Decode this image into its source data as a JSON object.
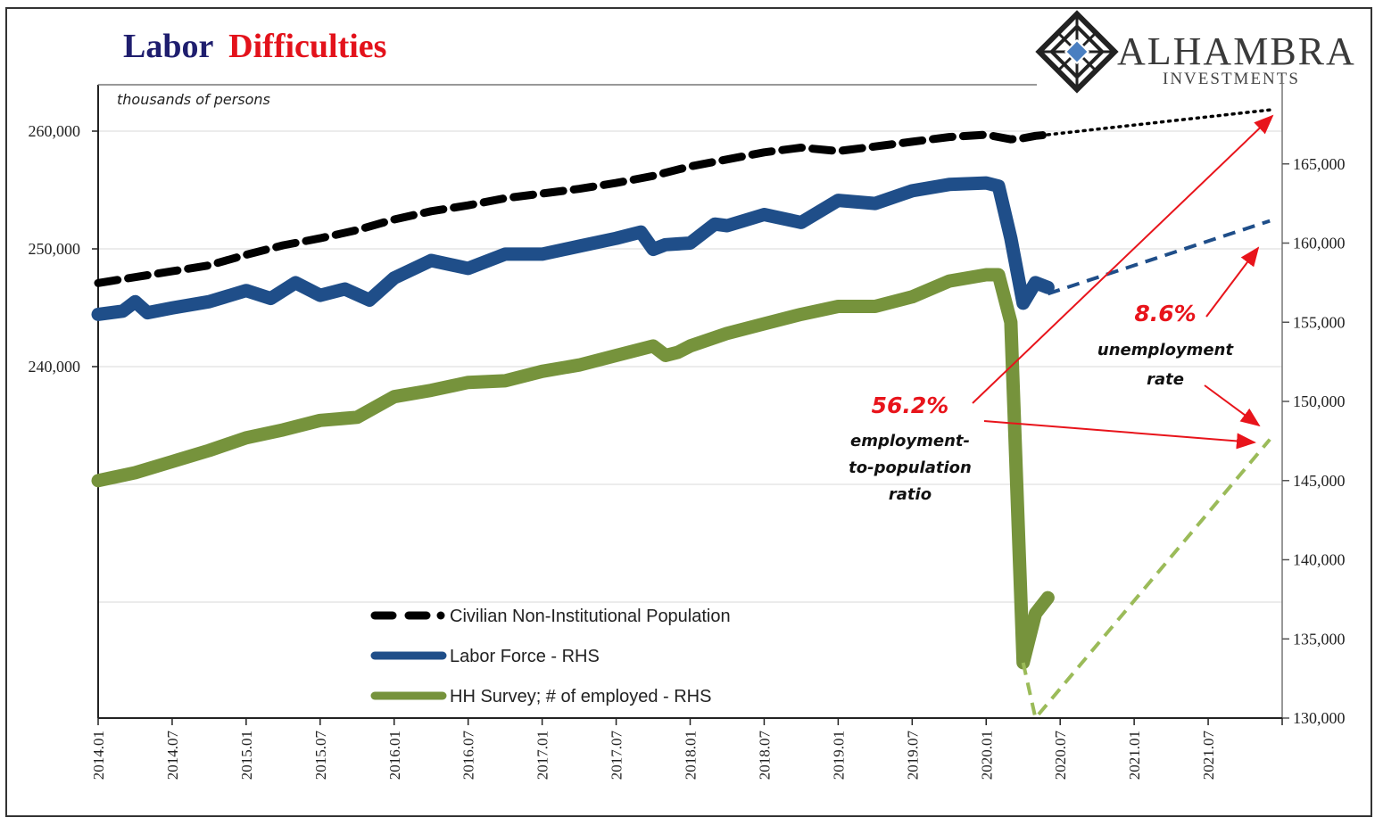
{
  "header": {
    "title_part1": "Labor",
    "title_part2": "Difficulties",
    "title_colors": {
      "part1": "#1f1e6e",
      "part2": "#e3121b"
    },
    "unit_label": "thousands of persons"
  },
  "logo": {
    "name": "ALHAMBRA",
    "sub": "INVESTMENTS",
    "icon": "diamond-lattice-icon",
    "accent": "#4a7fc1"
  },
  "chart_data": {
    "type": "line",
    "title": "Labor Difficulties",
    "ylabel_left": "thousands of persons",
    "x_start": "2014.01",
    "x_tick_labels": [
      "2014.01",
      "2014.07",
      "2015.01",
      "2015.07",
      "2016.01",
      "2016.07",
      "2017.01",
      "2017.07",
      "2018.01",
      "2018.07",
      "2019.01",
      "2019.07",
      "2020.01",
      "2020.07",
      "2021.01",
      "2021.07"
    ],
    "x_range_months": [
      0,
      96
    ],
    "left_axis": {
      "ticks": [
        240000,
        250000,
        260000
      ],
      "tick_labels": [
        "240,000",
        "250,000",
        "260,000"
      ],
      "gridlines": [
        220000,
        230000,
        240000,
        250000,
        260000
      ],
      "range": [
        210150,
        263940
      ]
    },
    "right_axis": {
      "ticks": [
        130000,
        135000,
        140000,
        145000,
        150000,
        155000,
        160000,
        165000
      ],
      "tick_labels": [
        "130,000",
        "135,000",
        "140,000",
        "145,000",
        "150,000",
        "155,000",
        "160,000",
        "165,000"
      ],
      "range": [
        130000,
        170000
      ]
    },
    "grid": true,
    "legend_position": "bottom-center",
    "series": [
      {
        "name": "Civilian Non-Institutional Population",
        "axis": "left",
        "color": "#000000",
        "style": "dashed",
        "months": [
          0,
          3,
          6,
          9,
          12,
          15,
          18,
          21,
          24,
          27,
          30,
          33,
          36,
          39,
          42,
          45,
          48,
          51,
          54,
          57,
          60,
          63,
          66,
          69,
          72,
          74,
          75,
          76,
          77
        ],
        "values": [
          247100,
          247600,
          248100,
          248600,
          249500,
          250300,
          250900,
          251600,
          252500,
          253200,
          253700,
          254300,
          254700,
          255100,
          255600,
          256200,
          257000,
          257600,
          258200,
          258600,
          258300,
          258700,
          259100,
          259500,
          259700,
          259300,
          259400,
          259600,
          259700
        ]
      },
      {
        "name": "Civilian Non-Institutional Population (projection)",
        "axis": "left",
        "color": "#000000",
        "style": "dotted",
        "months": [
          77,
          95
        ],
        "values": [
          259700,
          261800
        ]
      },
      {
        "name": "Labor Force - RHS",
        "axis": "right",
        "color": "#1f4e89",
        "style": "solid",
        "months": [
          0,
          2,
          3,
          4,
          6,
          9,
          12,
          14,
          16,
          18,
          20,
          22,
          24,
          27,
          30,
          33,
          36,
          39,
          42,
          44,
          45,
          46,
          48,
          50,
          51,
          54,
          57,
          60,
          63,
          66,
          69,
          72,
          73,
          74,
          75,
          76,
          77
        ],
        "values": [
          155500,
          155700,
          156300,
          155600,
          155900,
          156300,
          157000,
          156500,
          157500,
          156700,
          157100,
          156400,
          157800,
          158900,
          158400,
          159300,
          159300,
          159800,
          160300,
          160700,
          159600,
          159900,
          160000,
          161200,
          161100,
          161800,
          161300,
          162700,
          162500,
          163300,
          163700,
          163800,
          163600,
          160300,
          156200,
          157500,
          157200
        ]
      },
      {
        "name": "Labor Force - RHS (projection)",
        "axis": "right",
        "color": "#1f4e89",
        "style": "dashed",
        "months": [
          77,
          95
        ],
        "values": [
          156800,
          161400
        ]
      },
      {
        "name": "HH Survey; # of employed - RHS",
        "axis": "right",
        "color": "#76933c",
        "style": "solid",
        "months": [
          0,
          3,
          6,
          9,
          12,
          15,
          18,
          21,
          24,
          27,
          30,
          33,
          36,
          39,
          42,
          45,
          46,
          47,
          48,
          51,
          54,
          57,
          60,
          63,
          66,
          69,
          72,
          73,
          74,
          75,
          76,
          77
        ],
        "values": [
          145000,
          145500,
          146200,
          146900,
          147700,
          148200,
          148800,
          149000,
          150300,
          150700,
          151200,
          151300,
          151900,
          152300,
          152900,
          153500,
          152900,
          153100,
          153500,
          154300,
          154900,
          155500,
          156000,
          156000,
          156600,
          157600,
          158000,
          158000,
          155000,
          133500,
          136600,
          137600
        ]
      },
      {
        "name": "HH Survey; # of employed - RHS (projection)",
        "axis": "right",
        "color": "#9bbb59",
        "style": "dashed",
        "months": [
          75,
          76,
          95
        ],
        "values": [
          133500,
          130000,
          147600
        ]
      }
    ],
    "annotations": [
      {
        "value_text": "56.2%",
        "label": [
          "employment-",
          "to-population",
          "ratio"
        ]
      },
      {
        "value_text": "8.6%",
        "label": [
          "unemployment",
          "rate"
        ]
      }
    ],
    "annotation_color": "#e8141b"
  },
  "legend": [
    {
      "label": "Civilian Non-Institutional Population",
      "color": "#000000",
      "style": "dashed"
    },
    {
      "label": "Labor Force - RHS",
      "color": "#1f4e89",
      "style": "solid"
    },
    {
      "label": "HH Survey; # of employed - RHS",
      "color": "#76933c",
      "style": "solid"
    }
  ]
}
